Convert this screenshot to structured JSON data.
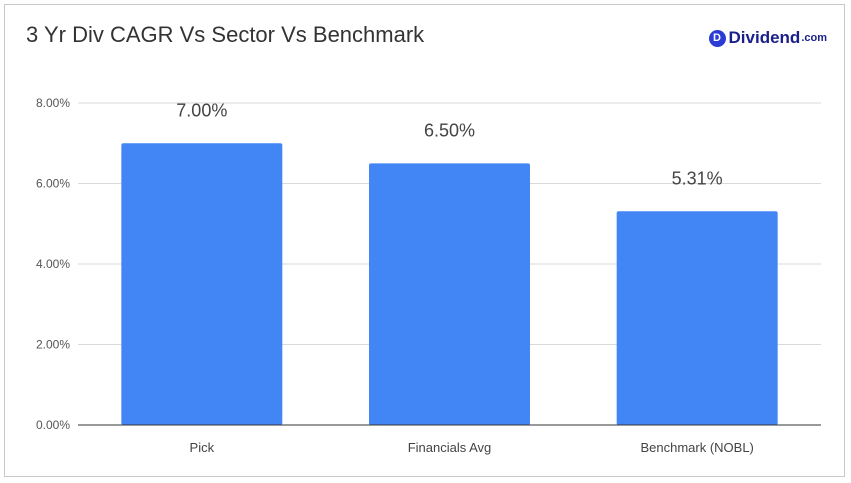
{
  "header": {
    "title": "3 Yr Div CAGR Vs Sector Vs Benchmark",
    "logo_mark": "D",
    "logo_word": "Dividend",
    "logo_tld": ".com"
  },
  "colors": {
    "bar": "#4285f4",
    "grid": "#d9d9d9",
    "axis": "#333333",
    "brand": "#2b3bd6"
  },
  "chart_data": {
    "type": "bar",
    "categories": [
      "Pick",
      "Financials Avg",
      "Benchmark (NOBL)"
    ],
    "values": [
      7.0,
      6.5,
      5.31
    ],
    "data_labels": [
      "7.00%",
      "6.50%",
      "5.31%"
    ],
    "title": "3 Yr Div CAGR Vs Sector Vs Benchmark",
    "xlabel": "",
    "ylabel": "",
    "ylim": [
      0,
      8
    ],
    "yticks": [
      0,
      2,
      4,
      6,
      8
    ],
    "ytick_labels": [
      "0.00%",
      "2.00%",
      "4.00%",
      "6.00%",
      "8.00%"
    ],
    "grid": true,
    "legend": "none"
  }
}
